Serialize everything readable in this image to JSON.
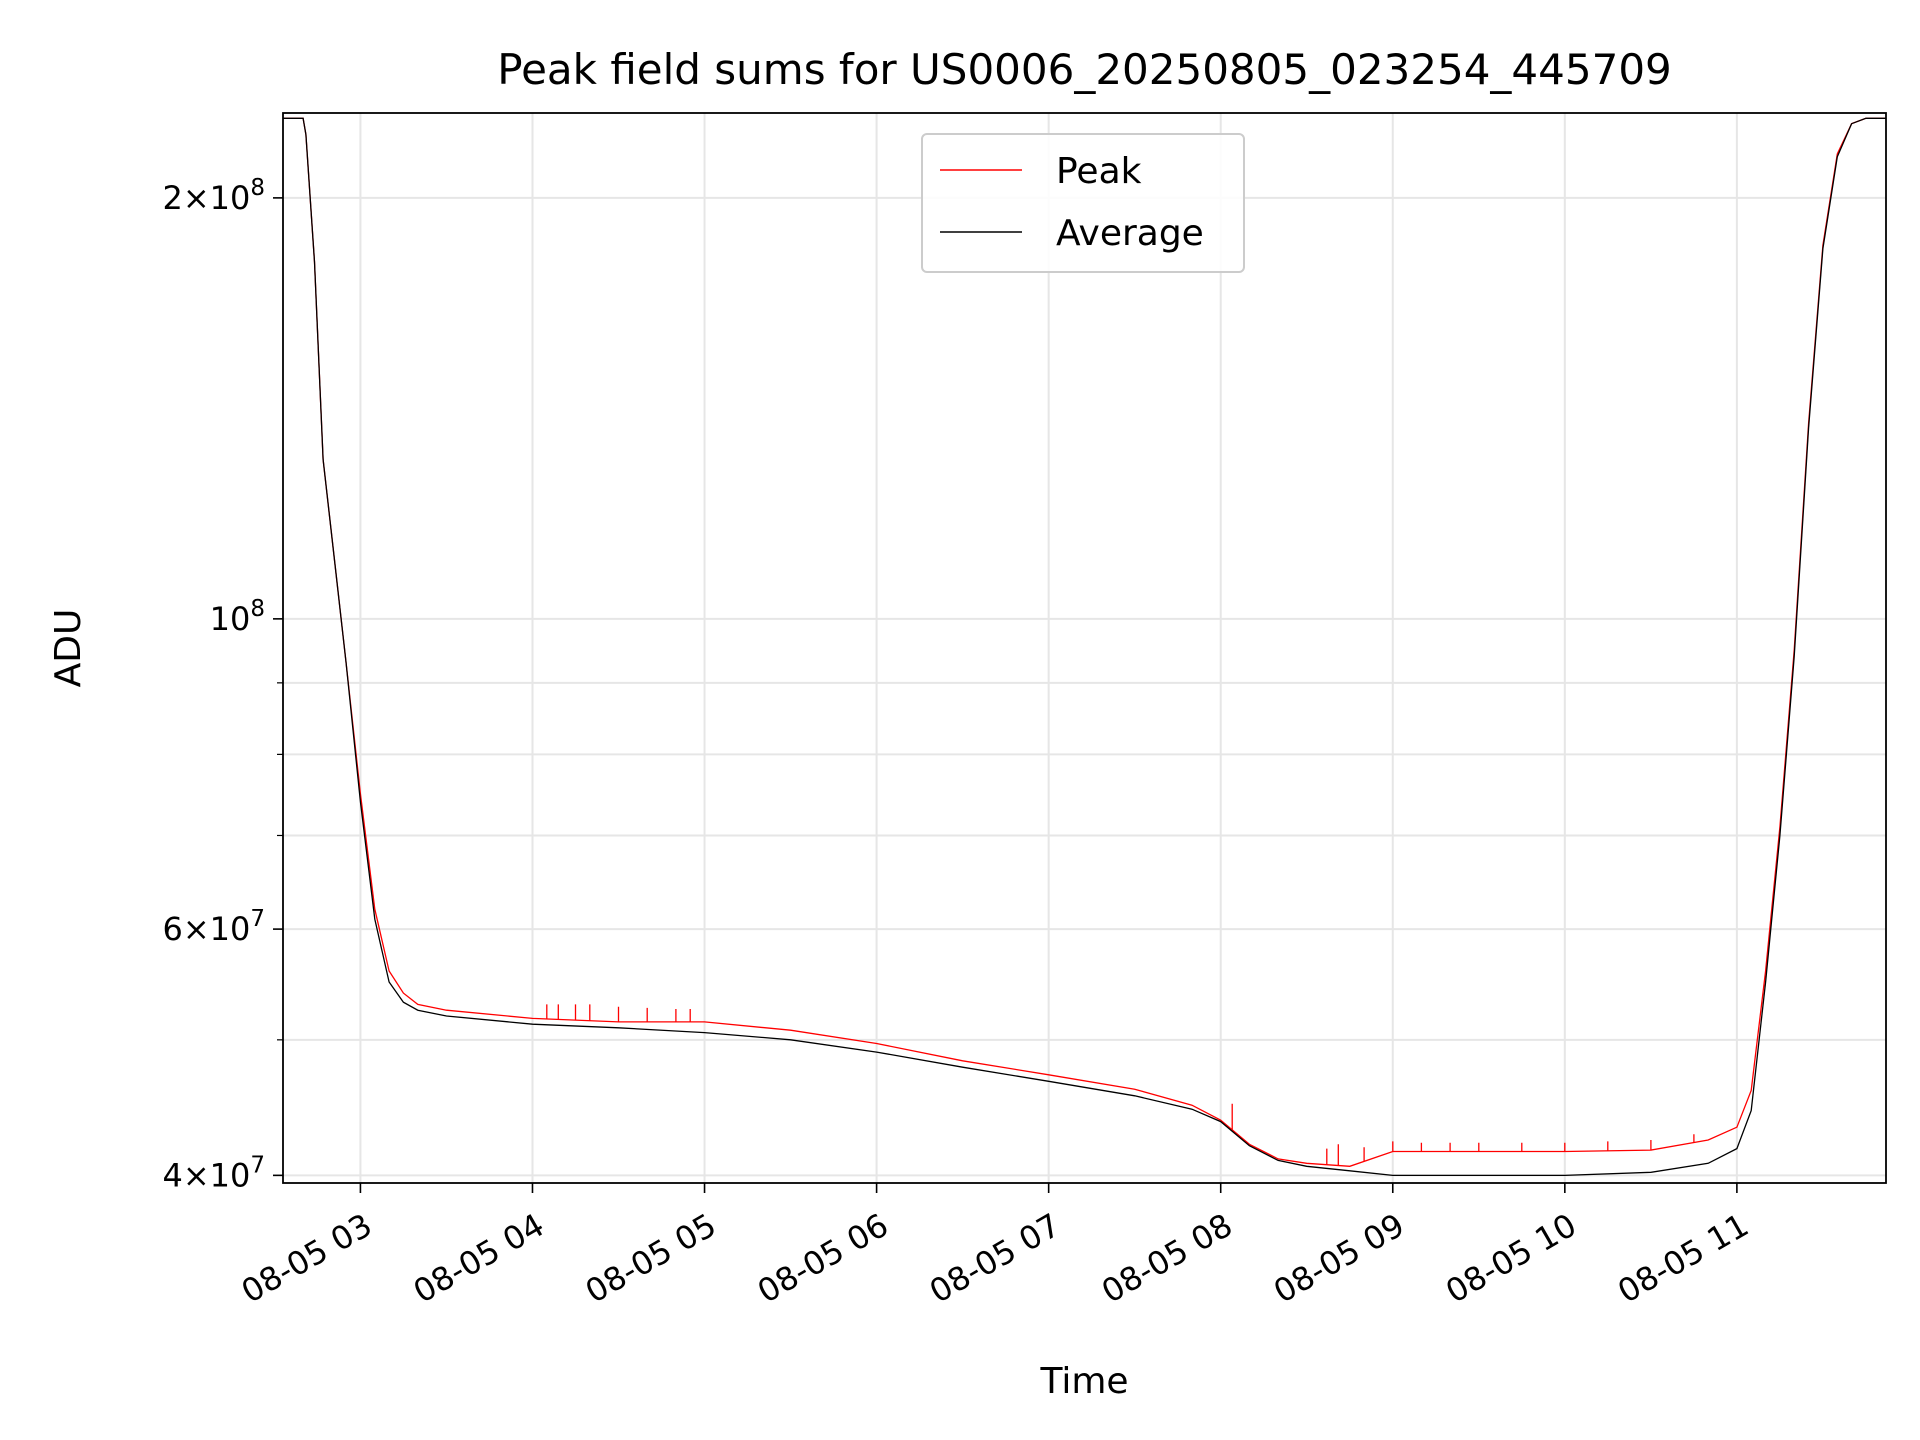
{
  "chart_data": {
    "type": "line",
    "title": "Peak field sums for US0006_20250805_023254_445709",
    "xlabel": "Time",
    "ylabel": "ADU",
    "y_scale": "log",
    "ylim": [
      39500000,
      230000000
    ],
    "xlim": [
      "2025-08-05 02:33",
      "2025-08-05 11:52"
    ],
    "grid": true,
    "legend_position": "top-center",
    "x_ticks": [
      {
        "value": "2025-08-05 03:00",
        "label": "08-05 03"
      },
      {
        "value": "2025-08-05 04:00",
        "label": "08-05 04"
      },
      {
        "value": "2025-08-05 05:00",
        "label": "08-05 05"
      },
      {
        "value": "2025-08-05 06:00",
        "label": "08-05 06"
      },
      {
        "value": "2025-08-05 07:00",
        "label": "08-05 07"
      },
      {
        "value": "2025-08-05 08:00",
        "label": "08-05 08"
      },
      {
        "value": "2025-08-05 09:00",
        "label": "08-05 09"
      },
      {
        "value": "2025-08-05 10:00",
        "label": "08-05 10"
      },
      {
        "value": "2025-08-05 11:00",
        "label": "08-05 11"
      }
    ],
    "y_major_ticks": [
      {
        "value": 40000000,
        "mantissa": "4",
        "times": "×",
        "base": "10",
        "exp": "7"
      },
      {
        "value": 60000000,
        "mantissa": "6",
        "times": "×",
        "base": "10",
        "exp": "7"
      },
      {
        "value": 100000000,
        "mantissa": "",
        "times": "",
        "base": "10",
        "exp": "8"
      },
      {
        "value": 200000000,
        "mantissa": "2",
        "times": "×",
        "base": "10",
        "exp": "8"
      }
    ],
    "y_minor_ticks": [
      50000000,
      70000000,
      80000000,
      90000000
    ],
    "series": [
      {
        "name": "Peak",
        "color": "#ff0000",
        "x": [
          "2025-08-05 02:33",
          "2025-08-05 02:40",
          "2025-08-05 02:41",
          "2025-08-05 02:44",
          "2025-08-05 02:47",
          "2025-08-05 02:51",
          "2025-08-05 02:55",
          "2025-08-05 03:00",
          "2025-08-05 03:05",
          "2025-08-05 03:10",
          "2025-08-05 03:15",
          "2025-08-05 03:20",
          "2025-08-05 03:30",
          "2025-08-05 04:00",
          "2025-08-05 04:30",
          "2025-08-05 05:00",
          "2025-08-05 05:30",
          "2025-08-05 06:00",
          "2025-08-05 06:30",
          "2025-08-05 07:00",
          "2025-08-05 07:30",
          "2025-08-05 07:50",
          "2025-08-05 08:00",
          "2025-08-05 08:10",
          "2025-08-05 08:20",
          "2025-08-05 08:30",
          "2025-08-05 08:45",
          "2025-08-05 09:00",
          "2025-08-05 09:30",
          "2025-08-05 10:00",
          "2025-08-05 10:30",
          "2025-08-05 10:50",
          "2025-08-05 11:00",
          "2025-08-05 11:05",
          "2025-08-05 11:10",
          "2025-08-05 11:15",
          "2025-08-05 11:20",
          "2025-08-05 11:25",
          "2025-08-05 11:30",
          "2025-08-05 11:35",
          "2025-08-05 11:40",
          "2025-08-05 11:45",
          "2025-08-05 11:52"
        ],
        "y": [
          228000000,
          228000000,
          222000000,
          180000000,
          130000000,
          110000000,
          93000000,
          75000000,
          62000000,
          56000000,
          54000000,
          53000000,
          52500000,
          51800000,
          51500000,
          51500000,
          50800000,
          49700000,
          48300000,
          47200000,
          46100000,
          44900000,
          43800000,
          42100000,
          41100000,
          40800000,
          40600000,
          41600000,
          41600000,
          41600000,
          41700000,
          42400000,
          43300000,
          46000000,
          56000000,
          71000000,
          95000000,
          138000000,
          185000000,
          215000000,
          226000000,
          228000000,
          228000000
        ],
        "spikes": [
          {
            "x": "2025-08-05 04:05",
            "y": 53000000
          },
          {
            "x": "2025-08-05 04:09",
            "y": 53000000
          },
          {
            "x": "2025-08-05 04:15",
            "y": 53000000
          },
          {
            "x": "2025-08-05 04:20",
            "y": 53000000
          },
          {
            "x": "2025-08-05 04:30",
            "y": 52800000
          },
          {
            "x": "2025-08-05 04:40",
            "y": 52700000
          },
          {
            "x": "2025-08-05 04:50",
            "y": 52600000
          },
          {
            "x": "2025-08-05 04:55",
            "y": 52600000
          },
          {
            "x": "2025-08-05 08:04",
            "y": 45000000
          },
          {
            "x": "2025-08-05 08:37",
            "y": 41800000
          },
          {
            "x": "2025-08-05 08:41",
            "y": 42100000
          },
          {
            "x": "2025-08-05 08:50",
            "y": 41900000
          },
          {
            "x": "2025-08-05 09:00",
            "y": 42300000
          },
          {
            "x": "2025-08-05 09:10",
            "y": 42200000
          },
          {
            "x": "2025-08-05 09:20",
            "y": 42200000
          },
          {
            "x": "2025-08-05 09:30",
            "y": 42200000
          },
          {
            "x": "2025-08-05 09:45",
            "y": 42200000
          },
          {
            "x": "2025-08-05 10:00",
            "y": 42200000
          },
          {
            "x": "2025-08-05 10:15",
            "y": 42300000
          },
          {
            "x": "2025-08-05 10:30",
            "y": 42400000
          },
          {
            "x": "2025-08-05 10:45",
            "y": 42800000
          }
        ]
      },
      {
        "name": "Average",
        "color": "#000000",
        "x": [
          "2025-08-05 02:33",
          "2025-08-05 02:40",
          "2025-08-05 02:41",
          "2025-08-05 02:44",
          "2025-08-05 02:47",
          "2025-08-05 02:51",
          "2025-08-05 02:55",
          "2025-08-05 03:00",
          "2025-08-05 03:05",
          "2025-08-05 03:10",
          "2025-08-05 03:15",
          "2025-08-05 03:20",
          "2025-08-05 03:30",
          "2025-08-05 04:00",
          "2025-08-05 04:30",
          "2025-08-05 05:00",
          "2025-08-05 05:30",
          "2025-08-05 06:00",
          "2025-08-05 06:30",
          "2025-08-05 07:00",
          "2025-08-05 07:30",
          "2025-08-05 07:50",
          "2025-08-05 08:00",
          "2025-08-05 08:10",
          "2025-08-05 08:20",
          "2025-08-05 08:30",
          "2025-08-05 08:45",
          "2025-08-05 09:00",
          "2025-08-05 09:30",
          "2025-08-05 10:00",
          "2025-08-05 10:30",
          "2025-08-05 10:50",
          "2025-08-05 11:00",
          "2025-08-05 11:05",
          "2025-08-05 11:10",
          "2025-08-05 11:15",
          "2025-08-05 11:20",
          "2025-08-05 11:25",
          "2025-08-05 11:30",
          "2025-08-05 11:35",
          "2025-08-05 11:40",
          "2025-08-05 11:45",
          "2025-08-05 11:52"
        ],
        "y": [
          228000000,
          228000000,
          222000000,
          180000000,
          130000000,
          110000000,
          93000000,
          74000000,
          61000000,
          55000000,
          53200000,
          52500000,
          52000000,
          51300000,
          51000000,
          50600000,
          50000000,
          49000000,
          47800000,
          46700000,
          45600000,
          44600000,
          43700000,
          42000000,
          41000000,
          40600000,
          40300000,
          40000000,
          40000000,
          40000000,
          40200000,
          40800000,
          41800000,
          44500000,
          55000000,
          70000000,
          94000000,
          137000000,
          184000000,
          214000000,
          226000000,
          228000000,
          228000000
        ]
      }
    ]
  }
}
